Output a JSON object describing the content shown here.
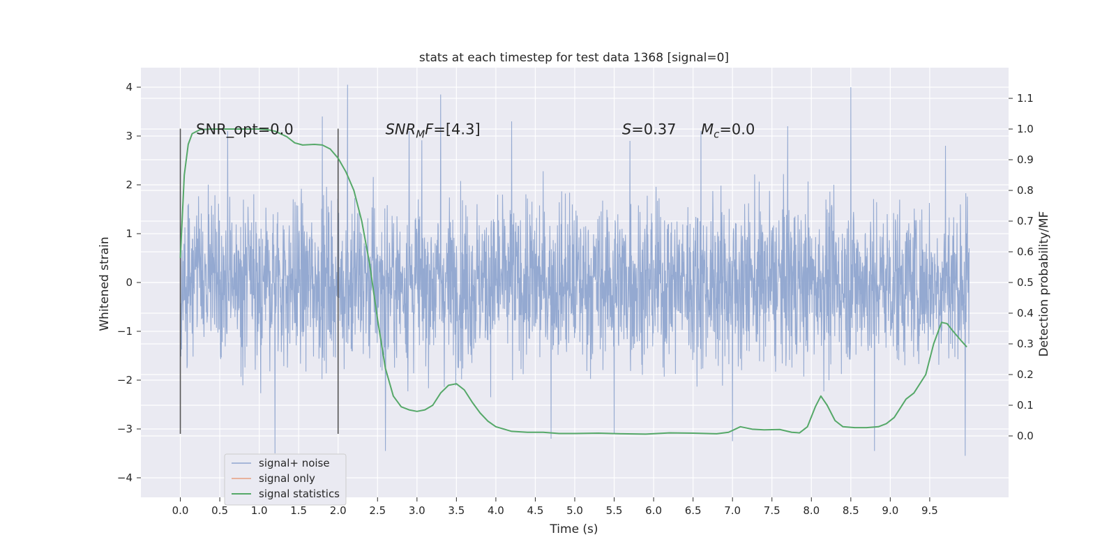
{
  "chart_data": {
    "type": "line",
    "title": "stats at each timestep for test data 1368 [signal=0]",
    "xlabel": "Time (s)",
    "ylabel_left": "Whitened strain",
    "ylabel_right": "Detection probability/MF",
    "xlim": [
      -0.5,
      10.5
    ],
    "ylim_left": [
      -4.4,
      4.4
    ],
    "ylim_right": [
      -0.2,
      1.2
    ],
    "grid": true,
    "legend_placement": "lower-left",
    "x_ticks": [
      0.0,
      0.5,
      1.0,
      1.5,
      2.0,
      2.5,
      3.0,
      3.5,
      4.0,
      4.5,
      5.0,
      5.5,
      6.0,
      6.5,
      7.0,
      7.5,
      8.0,
      8.5,
      9.0,
      9.5
    ],
    "x_tick_labels": [
      "0.0",
      "0.5",
      "1.0",
      "1.5",
      "2.0",
      "2.5",
      "3.0",
      "3.5",
      "4.0",
      "4.5",
      "5.0",
      "5.5",
      "6.0",
      "6.5",
      "7.0",
      "7.5",
      "8.0",
      "8.5",
      "9.0",
      "9.5"
    ],
    "y_left_ticks": [
      4,
      3,
      2,
      1,
      0,
      -1,
      -2,
      -3,
      -4
    ],
    "y_left_tick_labels": [
      "4",
      "3",
      "2",
      "1",
      "0",
      "−1",
      "−2",
      "−3",
      "−4"
    ],
    "y_right_ticks": [
      1.1,
      1.0,
      0.9,
      0.8,
      0.7,
      0.6,
      0.5,
      0.4,
      0.3,
      0.2,
      0.1,
      0.0
    ],
    "y_right_tick_labels": [
      "1.1",
      "1.0",
      "0.9",
      "0.8",
      "0.7",
      "0.6",
      "0.5",
      "0.4",
      "0.3",
      "0.2",
      "0.1",
      "0.0"
    ],
    "series": [
      {
        "name": "signal+ noise",
        "color": "#8fa5cf",
        "axis": "left",
        "x_range": [
          0.0,
          10.0
        ],
        "typical_amplitude": 1.3,
        "peaks": [
          {
            "x": 0.6,
            "y": 3.1
          },
          {
            "x": 1.2,
            "y": 3.0
          },
          {
            "x": 1.8,
            "y": 3.4
          },
          {
            "x": 2.12,
            "y": 4.05
          },
          {
            "x": 2.9,
            "y": 3.1
          },
          {
            "x": 3.3,
            "y": 3.85
          },
          {
            "x": 4.2,
            "y": 3.3
          },
          {
            "x": 5.7,
            "y": 2.9
          },
          {
            "x": 6.6,
            "y": 3.1
          },
          {
            "x": 7.7,
            "y": 3.2
          },
          {
            "x": 8.5,
            "y": 4.0
          },
          {
            "x": 9.7,
            "y": 2.8
          }
        ],
        "troughs": [
          {
            "x": 1.2,
            "y": -3.5
          },
          {
            "x": 2.6,
            "y": -3.45
          },
          {
            "x": 4.7,
            "y": -3.2
          },
          {
            "x": 5.5,
            "y": -3.1
          },
          {
            "x": 7.0,
            "y": -3.25
          },
          {
            "x": 8.8,
            "y": -3.45
          },
          {
            "x": 9.95,
            "y": -3.55
          }
        ]
      },
      {
        "name": "signal only",
        "color": "#e8a07f",
        "axis": "left",
        "x": [],
        "y": []
      },
      {
        "name": "signal statistics",
        "color": "#55a868",
        "axis": "right",
        "x": [
          0.0,
          0.05,
          0.1,
          0.15,
          0.25,
          0.4,
          0.6,
          0.8,
          1.0,
          1.1,
          1.2,
          1.35,
          1.45,
          1.55,
          1.7,
          1.8,
          1.9,
          2.0,
          2.1,
          2.2,
          2.3,
          2.4,
          2.5,
          2.6,
          2.7,
          2.8,
          2.9,
          3.0,
          3.1,
          3.2,
          3.3,
          3.4,
          3.5,
          3.6,
          3.7,
          3.8,
          3.9,
          4.0,
          4.2,
          4.4,
          4.6,
          4.8,
          5.0,
          5.3,
          5.6,
          5.9,
          6.2,
          6.5,
          6.8,
          6.95,
          7.1,
          7.25,
          7.4,
          7.6,
          7.75,
          7.85,
          7.95,
          8.05,
          8.12,
          8.2,
          8.3,
          8.4,
          8.55,
          8.7,
          8.85,
          8.95,
          9.05,
          9.2,
          9.3,
          9.45,
          9.55,
          9.65,
          9.72,
          9.8,
          9.9,
          9.97
        ],
        "y": [
          0.58,
          0.85,
          0.95,
          0.985,
          0.998,
          1.0,
          1.0,
          1.0,
          1.0,
          0.998,
          0.993,
          0.975,
          0.955,
          0.948,
          0.95,
          0.948,
          0.935,
          0.905,
          0.86,
          0.8,
          0.7,
          0.56,
          0.38,
          0.22,
          0.13,
          0.095,
          0.085,
          0.08,
          0.085,
          0.1,
          0.14,
          0.165,
          0.17,
          0.15,
          0.11,
          0.075,
          0.048,
          0.03,
          0.015,
          0.012,
          0.012,
          0.008,
          0.008,
          0.009,
          0.007,
          0.006,
          0.01,
          0.009,
          0.007,
          0.012,
          0.03,
          0.022,
          0.02,
          0.021,
          0.012,
          0.01,
          0.03,
          0.095,
          0.13,
          0.1,
          0.05,
          0.03,
          0.027,
          0.027,
          0.03,
          0.04,
          0.06,
          0.12,
          0.14,
          0.2,
          0.3,
          0.37,
          0.366,
          0.34,
          0.31,
          0.29
        ]
      }
    ],
    "vlines": [
      {
        "x": 0.0,
        "y0": -3.1,
        "y1": 3.15,
        "color": "#555555"
      },
      {
        "x": 2.0,
        "y0": -3.1,
        "y1": 3.15,
        "color": "#555555"
      }
    ],
    "annotations": [
      {
        "x": 0.2,
        "y": 3.15,
        "text": "SNR_opt=0.0",
        "math": false
      },
      {
        "x": 2.6,
        "y": 3.15,
        "math": true,
        "base": "SNR",
        "sub": "M",
        "rest": "F=[4.3]"
      },
      {
        "x": 5.6,
        "y": 3.15,
        "math": true,
        "base": "S",
        "sub": "",
        "rest": "=0.37"
      },
      {
        "x": 6.6,
        "y": 3.15,
        "math": true,
        "base": "M",
        "sub": "c",
        "rest": "=0.0"
      }
    ]
  }
}
